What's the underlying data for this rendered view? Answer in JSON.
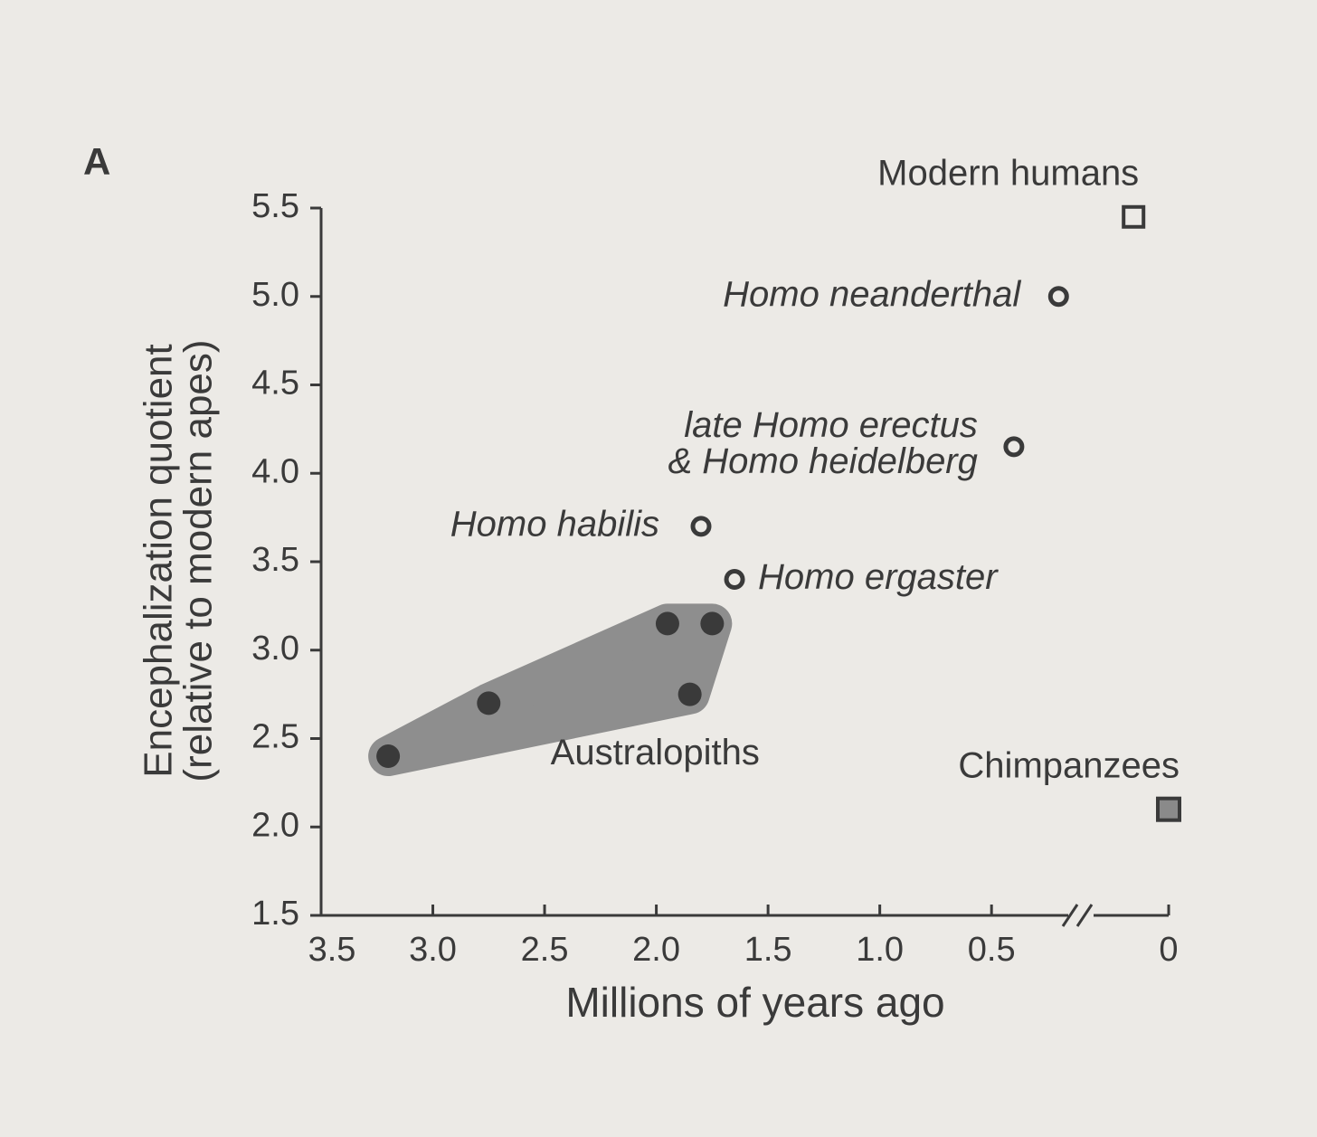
{
  "chart_data": {
    "type": "scatter",
    "panel_label": "A",
    "xlabel": "Millions of years ago",
    "ylabel": [
      "Encephalization quotient",
      "(relative to modern apes)"
    ],
    "xlim": [
      3.5,
      0
    ],
    "xbreak": 0.1,
    "ylim": [
      1.5,
      5.5
    ],
    "xticks": [
      3.5,
      {
        "value": 3,
        "label": "3.0"
      },
      2.5,
      {
        "value": 2,
        "label": "2.0"
      },
      1.5,
      {
        "value": 1,
        "label": "1.0"
      },
      0.5,
      0
    ],
    "yticks": [
      1.5,
      {
        "value": 2,
        "label": "2.0"
      },
      2.5,
      {
        "value": 3,
        "label": "3.0"
      },
      3.5,
      {
        "value": 4,
        "label": "4.0"
      },
      4.5,
      {
        "value": 5,
        "label": "5.0"
      },
      5.5
    ],
    "series": [
      {
        "name": "Australopiths",
        "marker": "circle-filled",
        "color": "#3a3a3a",
        "range_color": "#8e8e8e",
        "x": [
          3.2,
          2.75,
          1.95,
          1.75,
          1.85
        ],
        "values": [
          2.4,
          2.7,
          3.15,
          3.15,
          2.75
        ]
      },
      {
        "name": "Homo habilis",
        "marker": "circle-open",
        "color": "#3a3a3a",
        "x": [
          1.8
        ],
        "values": [
          3.7
        ]
      },
      {
        "name": "Homo ergaster",
        "marker": "circle-open",
        "color": "#3a3a3a",
        "x": [
          1.65
        ],
        "values": [
          3.4
        ]
      },
      {
        "name": "late Homo erectus\n& Homo heidelberg",
        "marker": "circle-open",
        "color": "#3a3a3a",
        "x": [
          0.4
        ],
        "values": [
          4.15
        ]
      },
      {
        "name": "Homo neanderthal",
        "marker": "circle-open",
        "color": "#3a3a3a",
        "x": [
          0.2
        ],
        "values": [
          5.0
        ]
      },
      {
        "name": "Modern humans",
        "marker": "square-open",
        "color": "#3a3a3a",
        "x": [
          0.04
        ],
        "values": [
          5.45
        ]
      },
      {
        "name": "Chimpanzees",
        "marker": "square-filled",
        "color": "#3a3a3a",
        "fill": "#8a8a8a",
        "x": [
          0
        ],
        "values": [
          2.1
        ]
      }
    ]
  }
}
